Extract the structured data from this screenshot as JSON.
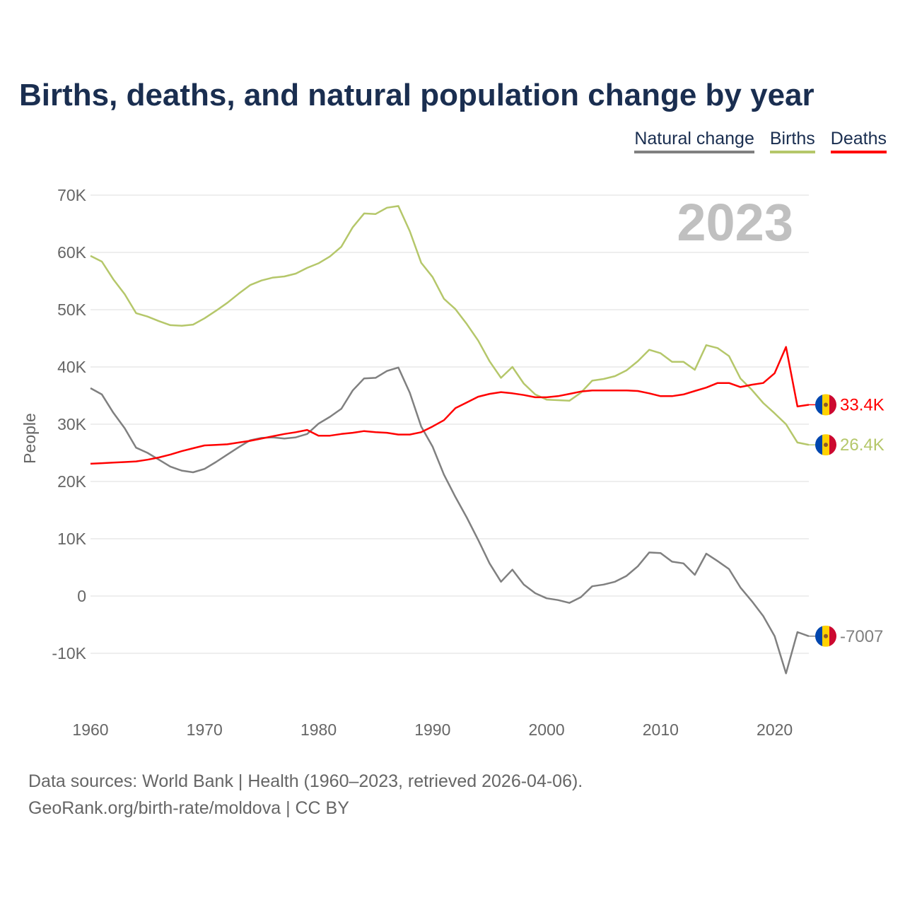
{
  "chart_data": {
    "type": "line",
    "title": "Births, deaths, and natural population change by year",
    "ylabel": "People",
    "xlabel": "",
    "xlim": [
      1960,
      2023
    ],
    "ylim": [
      -20000,
      70000
    ],
    "x_ticks": [
      "1960",
      "1970",
      "1980",
      "1990",
      "2000",
      "2010",
      "2020"
    ],
    "y_ticks": [
      {
        "v": 70000,
        "l": "70K"
      },
      {
        "v": 60000,
        "l": "60K"
      },
      {
        "v": 50000,
        "l": "50K"
      },
      {
        "v": 40000,
        "l": "40K"
      },
      {
        "v": 30000,
        "l": "30K"
      },
      {
        "v": 20000,
        "l": "20K"
      },
      {
        "v": 10000,
        "l": "10K"
      },
      {
        "v": 0,
        "l": "0"
      },
      {
        "v": -10000,
        "l": "-10K"
      }
    ],
    "grid": true,
    "legend_placement": "top-right",
    "year_watermark": "2023",
    "x_start": 1960,
    "series": [
      {
        "name": "Natural change",
        "color": "#808080",
        "end_label": "-7007",
        "values": [
          36300,
          35200,
          32000,
          29300,
          25900,
          25000,
          23800,
          22600,
          21900,
          21600,
          22200,
          23400,
          24700,
          26000,
          27200,
          27600,
          27700,
          27500,
          27700,
          28300,
          30100,
          31300,
          32700,
          35900,
          38000,
          38100,
          39300,
          39900,
          35500,
          29600,
          26100,
          21200,
          17300,
          13700,
          9800,
          5700,
          2500,
          4600,
          2000,
          500,
          -400,
          -700,
          -1200,
          -200,
          1700,
          2000,
          2500,
          3500,
          5200,
          7600,
          7500,
          6000,
          5700,
          3700,
          7400,
          6100,
          4700,
          1500,
          -900,
          -3500,
          -7000,
          -13500,
          -6300,
          -7007
        ]
      },
      {
        "name": "Births",
        "color": "#b5c76a",
        "end_label": "26.4K",
        "values": [
          59400,
          58400,
          55300,
          52700,
          49400,
          48800,
          48000,
          47300,
          47200,
          47400,
          48500,
          49800,
          51200,
          52800,
          54300,
          55100,
          55600,
          55800,
          56300,
          57300,
          58100,
          59300,
          61000,
          64400,
          66800,
          66700,
          67800,
          68100,
          63700,
          58200,
          55700,
          51900,
          50100,
          47500,
          44600,
          41000,
          38100,
          40000,
          37100,
          35200,
          34300,
          34200,
          34100,
          35500,
          37600,
          37900,
          38400,
          39400,
          41000,
          43000,
          42400,
          40900,
          40900,
          39500,
          43800,
          43300,
          41900,
          38000,
          36000,
          33700,
          31900,
          30000,
          26800,
          26400
        ]
      },
      {
        "name": "Deaths",
        "color": "#ff0000",
        "end_label": "33.4K",
        "values": [
          23100,
          23200,
          23300,
          23400,
          23500,
          23800,
          24200,
          24700,
          25300,
          25800,
          26300,
          26400,
          26500,
          26800,
          27100,
          27500,
          27900,
          28300,
          28600,
          29000,
          28000,
          28000,
          28300,
          28500,
          28800,
          28600,
          28500,
          28200,
          28200,
          28600,
          29600,
          30700,
          32800,
          33800,
          34800,
          35300,
          35600,
          35400,
          35100,
          34700,
          34700,
          34900,
          35300,
          35700,
          35900,
          35900,
          35900,
          35900,
          35800,
          35400,
          34900,
          34900,
          35200,
          35800,
          36400,
          37200,
          37200,
          36500,
          36900,
          37200,
          38900,
          43500,
          33100,
          33400
        ]
      }
    ],
    "legend_line_colors": {
      "Natural change": "#808080",
      "Births": "#b5c76a",
      "Deaths": "#ff0000"
    }
  },
  "footer": {
    "line1": "Data sources: World Bank | Health (1960–2023, retrieved 2026-04-06).",
    "line2": "GeoRank.org/birth-rate/moldova | CC BY"
  },
  "flag_colors": {
    "blue": "#0046ae",
    "yellow": "#ffd200",
    "red": "#cc092f"
  }
}
